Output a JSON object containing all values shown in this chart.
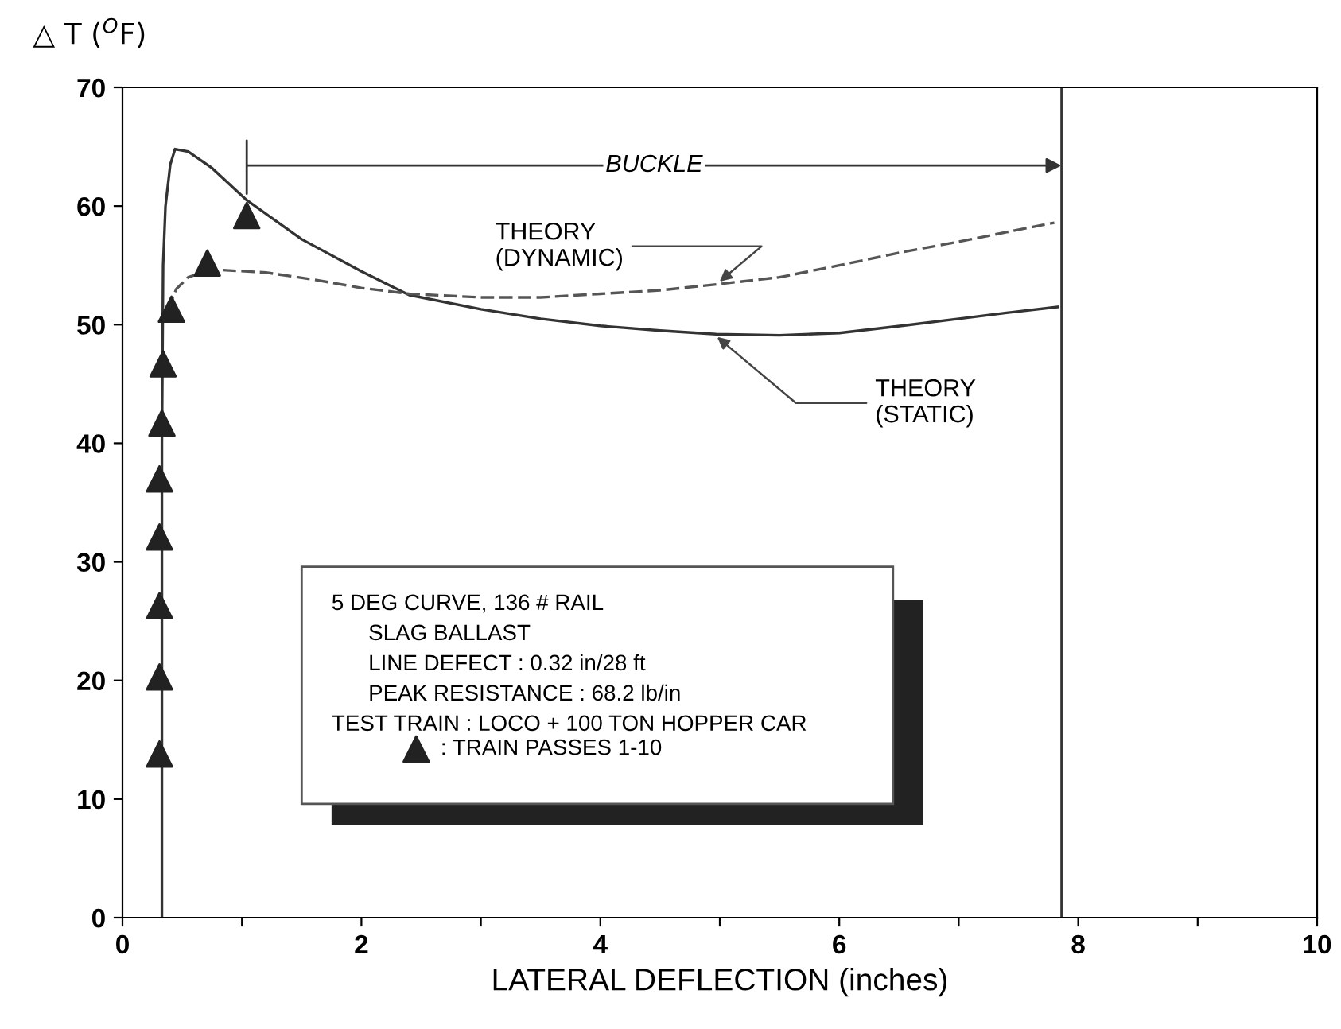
{
  "chart_data": {
    "type": "line",
    "xlabel": "LATERAL DEFLECTION (inches)",
    "ylabel": "△ T ($^{O}$F)",
    "xlim": [
      0,
      10
    ],
    "ylim": [
      0,
      70
    ],
    "xticks": [
      0,
      {
        "value": 1,
        "label": null
      },
      2,
      {
        "value": 3,
        "label": null
      },
      4,
      {
        "value": 5,
        "label": null
      },
      6,
      {
        "value": 7,
        "label": null
      },
      8,
      {
        "value": 9,
        "label": null
      },
      10
    ],
    "yticks": [
      0,
      10,
      20,
      30,
      40,
      50,
      60,
      70
    ],
    "grid": false,
    "legend": "bottom left",
    "series": [
      {
        "color": "#333333",
        "line_style": "solid",
        "marker": "none",
        "x": [
          0.33,
          0.33,
          0.34,
          0.36,
          0.4,
          0.44,
          0.55,
          0.75,
          1.04,
          1.5,
          2.0,
          2.4,
          3.0,
          3.5,
          4.0,
          4.5,
          4.97,
          5.5,
          6.0,
          6.52,
          7.0,
          7.4,
          7.83
        ],
        "values": [
          0,
          40,
          55,
          60,
          63.5,
          64.8,
          64.6,
          63.2,
          60.5,
          57.2,
          54.5,
          52.5,
          51.3,
          50.5,
          49.9,
          49.5,
          49.2,
          49.1,
          49.3,
          49.9,
          50.5,
          51.0,
          51.5
        ]
      },
      {
        "color": "#555555",
        "line_style": "dashed",
        "marker": "none",
        "x": [
          0.38,
          0.45,
          0.55,
          0.7,
          0.84,
          1.2,
          1.6,
          2.0,
          2.4,
          3.0,
          3.5,
          4.0,
          4.5,
          4.97,
          5.5,
          6.0,
          6.52,
          7.0,
          7.4,
          7.8
        ],
        "values": [
          51.3,
          53.0,
          54.0,
          54.5,
          54.6,
          54.4,
          53.8,
          53.1,
          52.6,
          52.3,
          52.3,
          52.6,
          52.9,
          53.4,
          54.0,
          55.0,
          56.1,
          57.0,
          57.8,
          58.6
        ]
      },
      {
        "type": "scatter",
        "name": ": TRAIN PASSES 1-10",
        "color": "#222222",
        "marker": "triangle",
        "x": [
          0.31,
          0.31,
          0.31,
          0.31,
          0.31,
          0.33,
          0.34,
          0.41,
          0.71,
          1.04
        ],
        "values": [
          13.8,
          20.3,
          26.3,
          32.1,
          37.0,
          41.7,
          46.7,
          51.3,
          55.2,
          59.2
        ]
      }
    ],
    "ref_lines": [
      {
        "axis": "x",
        "value": 7.86,
        "color": "#333333",
        "line_style": "solid"
      }
    ],
    "annotations": [
      "BUCKLE",
      {
        "text": "THEORY\n(DYNAMIC)",
        "x": 4.97,
        "y": 53.4
      },
      {
        "text": "THEORY\n(STATIC)",
        "x": 4.95,
        "y": 49.2
      },
      "5 DEG CURVE, 136 # RAIL\n      SLAG BALLAST\n      LINE DEFECT : 0.32 in/28 ft\n      PEAK RESISTANCE : 68.2 lb/in\nTEST TRAIN : LOCO + 100 TON HOPPER CAR"
    ]
  }
}
